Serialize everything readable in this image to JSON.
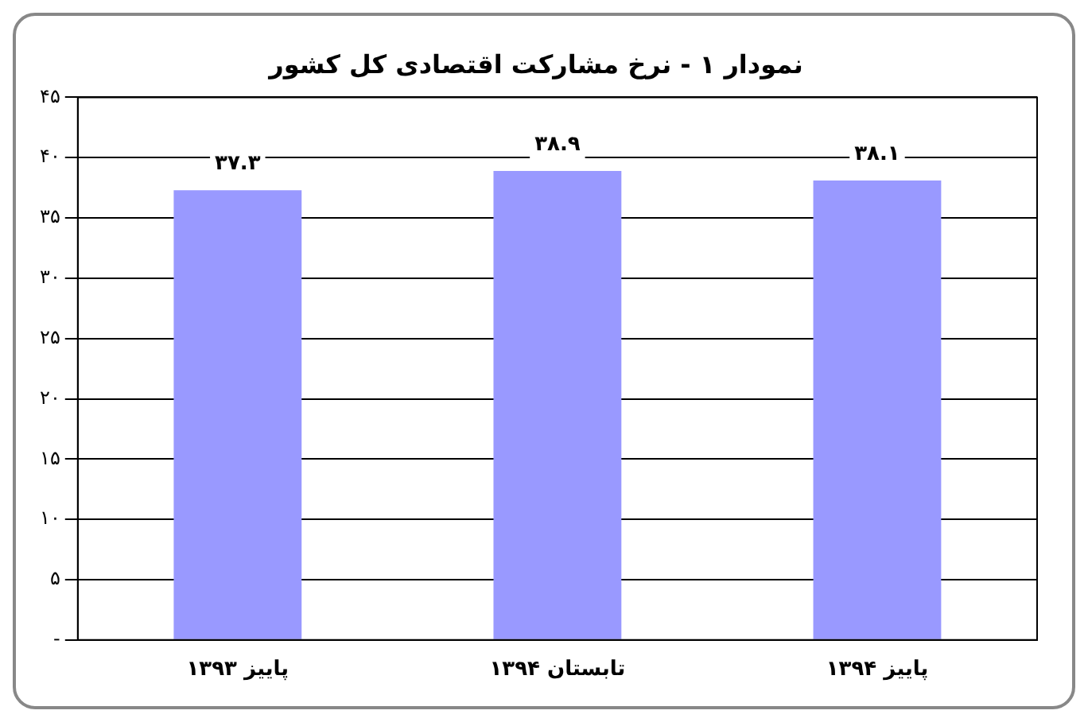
{
  "chart_data": {
    "type": "bar",
    "title": "نمودار ۱ - نرخ مشارکت اقتصادی کل کشور",
    "categories": [
      "پاییز ۱۳۹۳",
      "تابستان ۱۳۹۴",
      "پاییز ۱۳۹۴"
    ],
    "values": [
      37.3,
      38.9,
      38.1
    ],
    "color": "#9999ff",
    "value_labels": [
      "۳۷.۳",
      "۳۸.۹",
      "۳۸.۱"
    ],
    "ylim": [
      0,
      45
    ],
    "yticks": [
      {
        "value": 0,
        "label": "-"
      },
      {
        "value": 5,
        "label": "۵"
      },
      {
        "value": 10,
        "label": "۱۰"
      },
      {
        "value": 15,
        "label": "۱۵"
      },
      {
        "value": 20,
        "label": "۲۰"
      },
      {
        "value": 25,
        "label": "۲۵"
      },
      {
        "value": 30,
        "label": "۳۰"
      },
      {
        "value": 35,
        "label": "۳۵"
      },
      {
        "value": 40,
        "label": "۴۰"
      },
      {
        "value": 45,
        "label": "۴۵"
      }
    ],
    "grid": "y",
    "legend": false
  }
}
